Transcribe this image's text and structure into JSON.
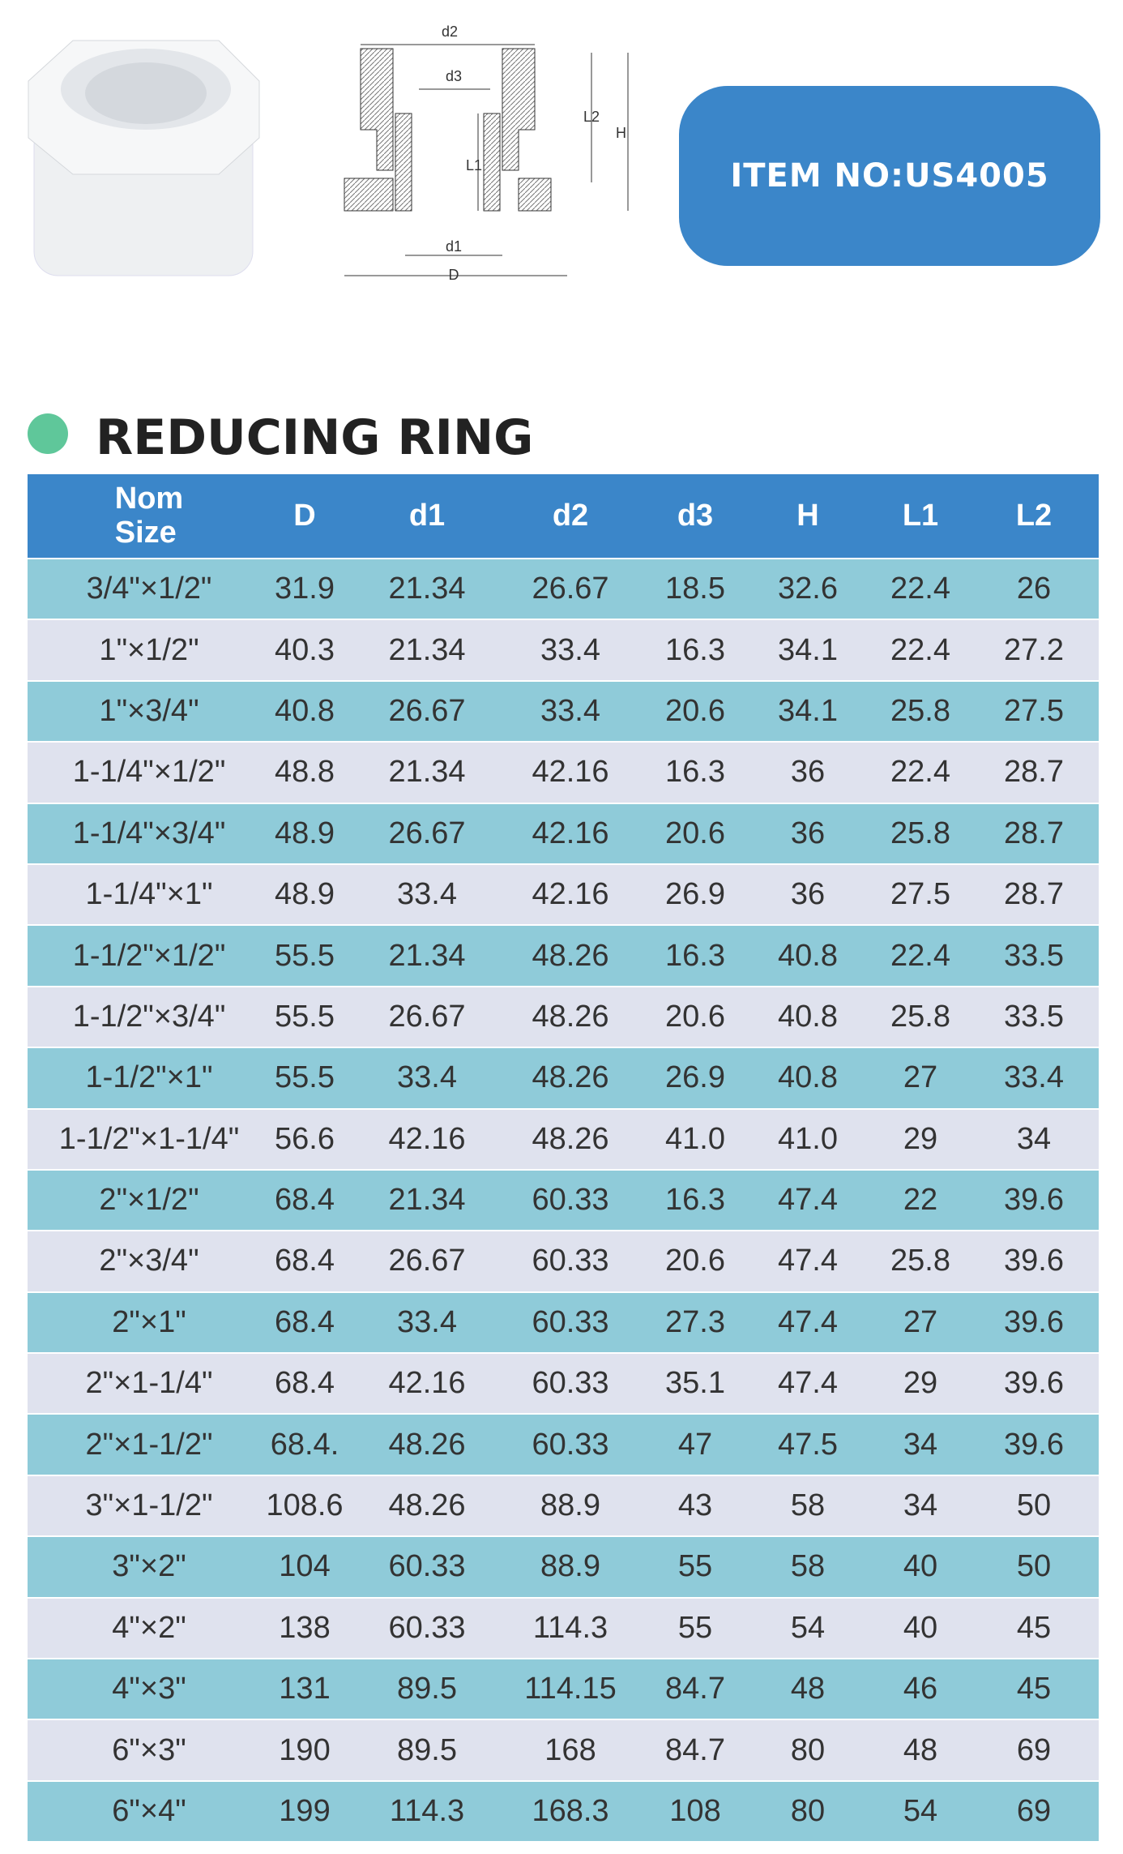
{
  "header": {
    "item_no": "ITEM NO:US4005"
  },
  "diagram": {
    "labels": [
      "d2",
      "d3",
      "L2",
      "H",
      "L1",
      "d1",
      "D"
    ]
  },
  "title": "REDUCING RING",
  "table": {
    "headers": [
      "Nom\nSize",
      "D",
      "d1",
      "d2",
      "d3",
      "H",
      "L1",
      "L2"
    ],
    "rows": [
      [
        "3/4\"×1/2\"",
        "31.9",
        "21.34",
        "26.67",
        "18.5",
        "32.6",
        "22.4",
        "26"
      ],
      [
        "1\"×1/2\"",
        "40.3",
        "21.34",
        "33.4",
        "16.3",
        "34.1",
        "22.4",
        "27.2"
      ],
      [
        "1\"×3/4\"",
        "40.8",
        "26.67",
        "33.4",
        "20.6",
        "34.1",
        "25.8",
        "27.5"
      ],
      [
        "1-1/4\"×1/2\"",
        "48.8",
        "21.34",
        "42.16",
        "16.3",
        "36",
        "22.4",
        "28.7"
      ],
      [
        "1-1/4\"×3/4\"",
        "48.9",
        "26.67",
        "42.16",
        "20.6",
        "36",
        "25.8",
        "28.7"
      ],
      [
        "1-1/4\"×1\"",
        "48.9",
        "33.4",
        "42.16",
        "26.9",
        "36",
        "27.5",
        "28.7"
      ],
      [
        "1-1/2\"×1/2\"",
        "55.5",
        "21.34",
        "48.26",
        "16.3",
        "40.8",
        "22.4",
        "33.5"
      ],
      [
        "1-1/2\"×3/4\"",
        "55.5",
        "26.67",
        "48.26",
        "20.6",
        "40.8",
        "25.8",
        "33.5"
      ],
      [
        "1-1/2\"×1\"",
        "55.5",
        "33.4",
        "48.26",
        "26.9",
        "40.8",
        "27",
        "33.4"
      ],
      [
        "1-1/2\"×1-1/4\"",
        "56.6",
        "42.16",
        "48.26",
        "41.0",
        "41.0",
        "29",
        "34"
      ],
      [
        "2\"×1/2\"",
        "68.4",
        "21.34",
        "60.33",
        "16.3",
        "47.4",
        "22",
        "39.6"
      ],
      [
        "2\"×3/4\"",
        "68.4",
        "26.67",
        "60.33",
        "20.6",
        "47.4",
        "25.8",
        "39.6"
      ],
      [
        "2\"×1\"",
        "68.4",
        "33.4",
        "60.33",
        "27.3",
        "47.4",
        "27",
        "39.6"
      ],
      [
        "2\"×1-1/4\"",
        "68.4",
        "42.16",
        "60.33",
        "35.1",
        "47.4",
        "29",
        "39.6"
      ],
      [
        "2\"×1-1/2\"",
        "68.4.",
        "48.26",
        "60.33",
        "47",
        "47.5",
        "34",
        "39.6"
      ],
      [
        "3\"×1-1/2\"",
        "108.6",
        "48.26",
        "88.9",
        "43",
        "58",
        "34",
        "50"
      ],
      [
        "3\"×2\"",
        "104",
        "60.33",
        "88.9",
        "55",
        "58",
        "40",
        "50"
      ],
      [
        "4\"×2\"",
        "138",
        "60.33",
        "114.3",
        "55",
        "54",
        "40",
        "45"
      ],
      [
        "4\"×3\"",
        "131",
        "89.5",
        "114.15",
        "84.7",
        "48",
        "46",
        "45"
      ],
      [
        "6\"×3\"",
        "190",
        "89.5",
        "168",
        "84.7",
        "80",
        "48",
        "69"
      ],
      [
        "6\"×4\"",
        "199",
        "114.3",
        "168.3",
        "108",
        "80",
        "54",
        "69"
      ]
    ]
  }
}
